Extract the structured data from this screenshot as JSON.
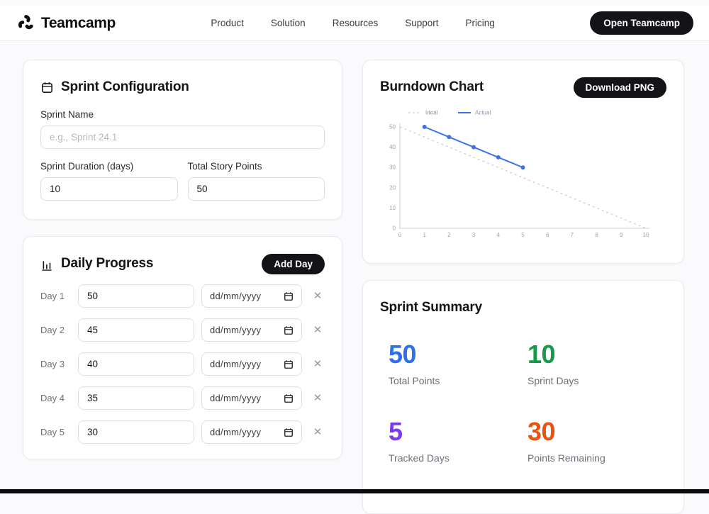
{
  "brand": {
    "name": "Teamcamp"
  },
  "nav": {
    "links": [
      "Product",
      "Solution",
      "Resources",
      "Support",
      "Pricing"
    ],
    "cta": "Open Teamcamp"
  },
  "sprint_config": {
    "title": "Sprint Configuration",
    "fields": {
      "sprint_name": {
        "label": "Sprint Name",
        "placeholder": "e.g., Sprint 24.1",
        "value": ""
      },
      "duration": {
        "label": "Sprint Duration (days)",
        "value": "10"
      },
      "points": {
        "label": "Total Story Points",
        "value": "50"
      }
    }
  },
  "daily_progress": {
    "title": "Daily Progress",
    "add_button": "Add Day",
    "date_placeholder": "dd/mm/yyyy",
    "remove_glyph": "✕",
    "rows": [
      {
        "label": "Day 1",
        "points": "50"
      },
      {
        "label": "Day 2",
        "points": "45"
      },
      {
        "label": "Day 3",
        "points": "40"
      },
      {
        "label": "Day 4",
        "points": "35"
      },
      {
        "label": "Day 5",
        "points": "30"
      }
    ]
  },
  "burndown": {
    "title": "Burndown Chart",
    "download_button": "Download PNG"
  },
  "chart_data": {
    "type": "line",
    "title": "Burndown Chart",
    "xlabel": "",
    "ylabel": "",
    "xlim": [
      0,
      10
    ],
    "ylim": [
      0,
      50
    ],
    "x_ticks": [
      0,
      1,
      2,
      3,
      4,
      5,
      6,
      7,
      8,
      9,
      10
    ],
    "y_ticks": [
      0,
      10,
      20,
      30,
      40,
      50
    ],
    "grid": false,
    "legend_position": "top-left",
    "axis_color": "#ccd2d9",
    "tick_color": "#98a1ac",
    "legend_text_color": "#8b93a7",
    "series": [
      {
        "name": "Ideal",
        "style": "dashed",
        "color": "#c9ced6",
        "markers": false,
        "x": [
          0,
          10
        ],
        "y": [
          50,
          0
        ]
      },
      {
        "name": "Actual",
        "style": "solid",
        "color": "#3e72e8",
        "markers": true,
        "x": [
          1,
          2,
          3,
          4,
          5
        ],
        "y": [
          50,
          45,
          40,
          35,
          30
        ]
      }
    ]
  },
  "summary": {
    "title": "Sprint Summary",
    "stats": [
      {
        "value": "50",
        "label": "Total Points",
        "color": "#2f6fe8"
      },
      {
        "value": "10",
        "label": "Sprint Days",
        "color": "#169a4a"
      },
      {
        "value": "5",
        "label": "Tracked Days",
        "color": "#7c3aed"
      },
      {
        "value": "30",
        "label": "Points Remaining",
        "color": "#ea520f"
      }
    ]
  }
}
